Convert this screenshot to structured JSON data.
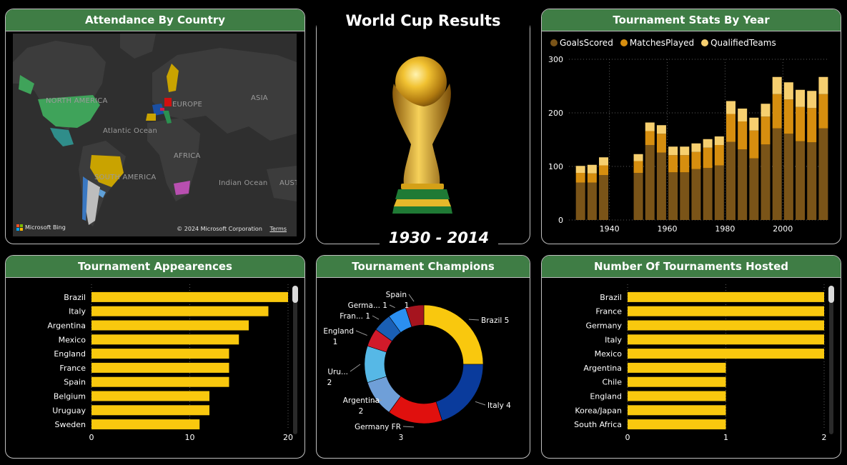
{
  "cards": {
    "attendance": {
      "title": "Attendance By Country"
    },
    "center": {
      "title": "World Cup Results",
      "years": "1930 - 2014"
    },
    "stats": {
      "title": "Tournament Stats By Year"
    },
    "appearances": {
      "title": "Tournament Appearences"
    },
    "champions": {
      "title": "Tournament Champions"
    },
    "hosted": {
      "title": "Number Of Tournaments Hosted"
    }
  },
  "map": {
    "labels": [
      "NORTH AMERICA",
      "EUROPE",
      "ASIA",
      "Atlantic Ocean",
      "AFRICA",
      "SOUTH AMERICA",
      "Indian Ocean",
      "AUST"
    ],
    "logo_text": "Microsoft Bing",
    "copyright": "© 2024 Microsoft Corporation",
    "terms": "Terms"
  },
  "chart_data": [
    {
      "id": "stats",
      "type": "bar",
      "stacked": true,
      "title": "Tournament Stats By Year",
      "legend_position": "top-left",
      "x": [
        1930,
        1934,
        1938,
        1950,
        1954,
        1958,
        1962,
        1966,
        1970,
        1974,
        1978,
        1982,
        1986,
        1990,
        1994,
        1998,
        2002,
        2006,
        2010,
        2014
      ],
      "xticks": [
        1940,
        1960,
        1980,
        2000
      ],
      "ylim": [
        0,
        300
      ],
      "yticks": [
        0,
        100,
        200,
        300
      ],
      "grid": true,
      "series": [
        {
          "name": "GoalsScored",
          "color": "#7a5418",
          "values": [
            70,
            70,
            84,
            88,
            140,
            126,
            89,
            89,
            95,
            97,
            102,
            146,
            132,
            115,
            141,
            171,
            161,
            147,
            145,
            171
          ]
        },
        {
          "name": "MatchesPlayed",
          "color": "#d68e0f",
          "values": [
            18,
            17,
            18,
            22,
            26,
            35,
            32,
            32,
            32,
            38,
            38,
            52,
            52,
            52,
            52,
            64,
            64,
            64,
            64,
            64
          ]
        },
        {
          "name": "QualifiedTeams",
          "color": "#f6cf6f",
          "values": [
            13,
            16,
            15,
            13,
            16,
            16,
            16,
            16,
            16,
            16,
            16,
            24,
            24,
            24,
            24,
            32,
            32,
            32,
            32,
            32
          ]
        }
      ]
    },
    {
      "id": "appearances",
      "type": "bar",
      "orientation": "horizontal",
      "title": "Tournament Appearences",
      "color": "#f9c80e",
      "categories": [
        "Brazil",
        "Italy",
        "Argentina",
        "Mexico",
        "England",
        "France",
        "Spain",
        "Belgium",
        "Uruguay",
        "Sweden"
      ],
      "values": [
        20,
        18,
        16,
        15,
        14,
        14,
        14,
        12,
        12,
        11
      ],
      "xlim": [
        0,
        20
      ],
      "xticks": [
        0,
        10,
        20
      ]
    },
    {
      "id": "champions",
      "type": "pie",
      "donut": true,
      "title": "Tournament Champions",
      "slices": [
        {
          "label": "Brazil",
          "display": "Brazil 5",
          "value": 5,
          "color": "#f9c80e"
        },
        {
          "label": "Italy",
          "display": "Italy 4",
          "value": 4,
          "color": "#0a3b9c"
        },
        {
          "label": "Germany FR",
          "display": "Germany FR",
          "value_text": "3",
          "value": 3,
          "color": "#e0100e"
        },
        {
          "label": "Argentina",
          "display": "Argentina",
          "value_text": "2",
          "value": 2,
          "color": "#6f9fd8"
        },
        {
          "label": "Uruguay",
          "display": "Uru...",
          "value_text": "2",
          "value": 2,
          "color": "#56b8e6"
        },
        {
          "label": "England",
          "display": "England",
          "value_text": "1",
          "value": 1,
          "color": "#d11a2a"
        },
        {
          "label": "France",
          "display": "Fran... 1",
          "value": 1,
          "color": "#1a5fb4"
        },
        {
          "label": "Germany",
          "display": "Germa... 1",
          "value": 1,
          "color": "#2b8ff0"
        },
        {
          "label": "Spain",
          "display": "Spain",
          "value_text": "1",
          "value": 1,
          "color": "#a5141e"
        }
      ]
    },
    {
      "id": "hosted",
      "type": "bar",
      "orientation": "horizontal",
      "title": "Number Of Tournaments Hosted",
      "color": "#f9c80e",
      "categories": [
        "Brazil",
        "France",
        "Germany",
        "Italy",
        "Mexico",
        "Argentina",
        "Chile",
        "England",
        "Korea/Japan",
        "South Africa"
      ],
      "values": [
        2,
        2,
        2,
        2,
        2,
        1,
        1,
        1,
        1,
        1
      ],
      "xlim": [
        0,
        2
      ],
      "xticks": [
        0,
        1,
        2
      ]
    }
  ],
  "colors": {
    "header": "#3f7d45",
    "bar": "#f9c80e",
    "border": "#bfbfbf"
  }
}
